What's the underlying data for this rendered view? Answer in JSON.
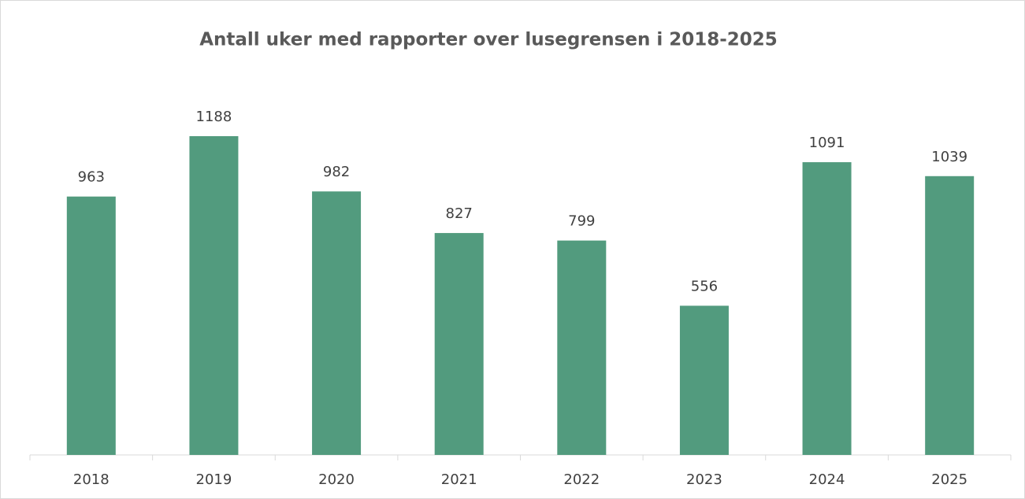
{
  "chart_data": {
    "type": "bar",
    "title": "Antall uker med rapporter over lusegrensen i 2018-2025",
    "categories": [
      "2018",
      "2019",
      "2020",
      "2021",
      "2022",
      "2023",
      "2024",
      "2025"
    ],
    "values": [
      963,
      1188,
      982,
      827,
      799,
      556,
      1091,
      1039
    ],
    "color": "#529b7e"
  }
}
